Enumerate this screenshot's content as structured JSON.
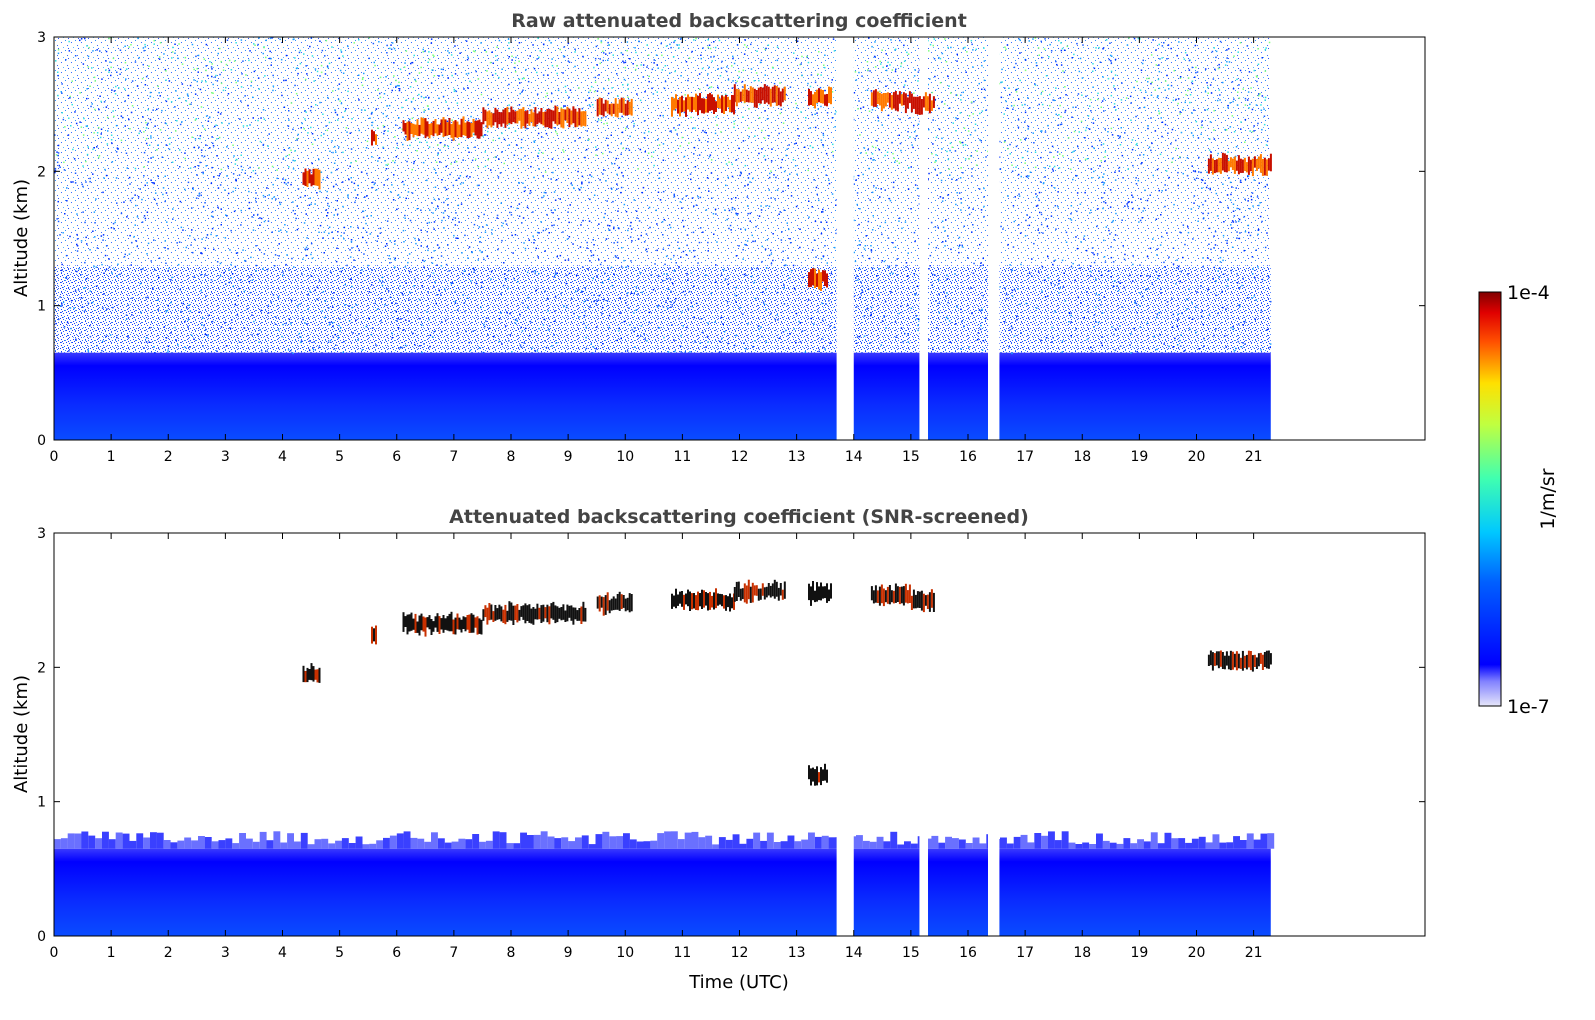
{
  "chart_data": [
    {
      "type": "heatmap",
      "title": "Raw attenuated backscattering coefficient",
      "xlabel": "",
      "ylabel": "Altitude (km)",
      "xlim": [
        0,
        24
      ],
      "ylim": [
        0,
        3
      ],
      "x_ticks": [
        0,
        1,
        2,
        3,
        4,
        5,
        6,
        7,
        8,
        9,
        10,
        11,
        12,
        13,
        14,
        15,
        16,
        17,
        18,
        19,
        20,
        21
      ],
      "y_ticks": [
        0,
        1,
        2,
        3
      ],
      "data_end_time": 21.3,
      "gaps": [
        [
          13.7,
          14.0
        ],
        [
          15.15,
          15.3
        ],
        [
          16.35,
          16.55
        ]
      ],
      "cloud_layers": [
        {
          "t_start": 4.35,
          "t_end": 4.65,
          "alt": 1.95
        },
        {
          "t_start": 5.55,
          "t_end": 5.65,
          "alt": 2.25
        },
        {
          "t_start": 6.1,
          "t_end": 7.5,
          "alt": 2.32
        },
        {
          "t_start": 7.5,
          "t_end": 9.3,
          "alt": 2.4
        },
        {
          "t_start": 9.5,
          "t_end": 10.1,
          "alt": 2.47
        },
        {
          "t_start": 10.8,
          "t_end": 11.9,
          "alt": 2.5
        },
        {
          "t_start": 11.9,
          "t_end": 12.8,
          "alt": 2.56
        },
        {
          "t_start": 13.2,
          "t_end": 13.6,
          "alt": 2.55
        },
        {
          "t_start": 14.3,
          "t_end": 15.0,
          "alt": 2.53
        },
        {
          "t_start": 15.0,
          "t_end": 15.4,
          "alt": 2.5
        },
        {
          "t_start": 13.2,
          "t_end": 13.55,
          "alt": 1.2
        },
        {
          "t_start": 20.2,
          "t_end": 21.3,
          "alt": 2.05
        }
      ],
      "boundary_layer_top": 0.65
    },
    {
      "type": "heatmap",
      "title": "Attenuated backscattering coefficient (SNR-screened)",
      "xlabel": "Time (UTC)",
      "ylabel": "Altitude (km)",
      "xlim": [
        0,
        24
      ],
      "ylim": [
        0,
        3
      ],
      "x_ticks": [
        0,
        1,
        2,
        3,
        4,
        5,
        6,
        7,
        8,
        9,
        10,
        11,
        12,
        13,
        14,
        15,
        16,
        17,
        18,
        19,
        20,
        21
      ],
      "y_ticks": [
        0,
        1,
        2,
        3
      ],
      "data_end_time": 21.3,
      "gaps": [
        [
          13.7,
          14.0
        ],
        [
          15.15,
          15.3
        ],
        [
          16.35,
          16.55
        ]
      ],
      "boundary_layer_top": 0.65
    }
  ],
  "colorbar": {
    "label": "1/m/sr",
    "max_label": "1e-4",
    "min_label": "1e-7",
    "range": [
      1e-07,
      0.0001
    ],
    "colormap": "jet"
  }
}
